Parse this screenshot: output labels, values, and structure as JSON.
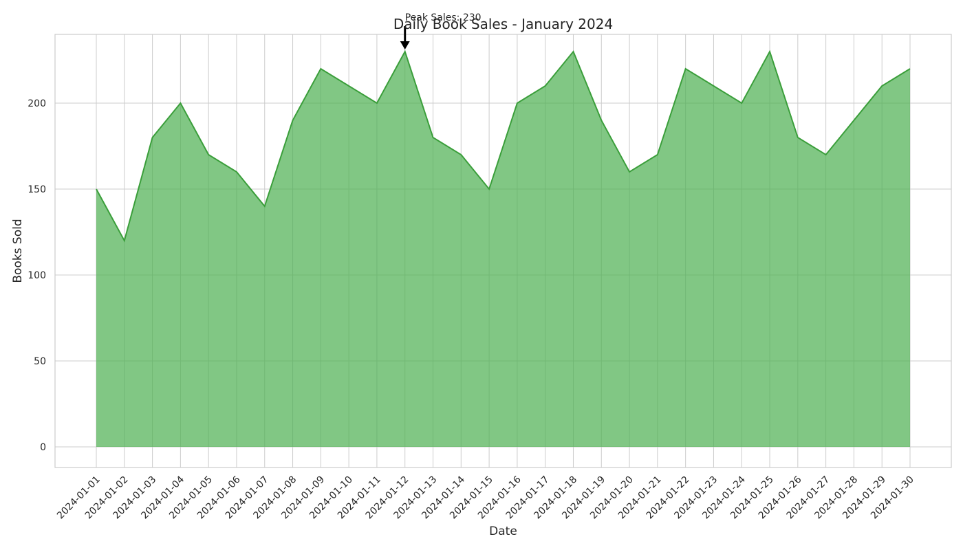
{
  "chart_data": {
    "type": "area",
    "title": "Daily Book Sales - January 2024",
    "xlabel": "Date",
    "ylabel": "Books Sold",
    "x": [
      "2024-01-01",
      "2024-01-02",
      "2024-01-03",
      "2024-01-04",
      "2024-01-05",
      "2024-01-06",
      "2024-01-07",
      "2024-01-08",
      "2024-01-09",
      "2024-01-10",
      "2024-01-11",
      "2024-01-12",
      "2024-01-13",
      "2024-01-14",
      "2024-01-15",
      "2024-01-16",
      "2024-01-17",
      "2024-01-18",
      "2024-01-19",
      "2024-01-20",
      "2024-01-21",
      "2024-01-22",
      "2024-01-23",
      "2024-01-24",
      "2024-01-25",
      "2024-01-26",
      "2024-01-27",
      "2024-01-28",
      "2024-01-29",
      "2024-01-30"
    ],
    "values": [
      150,
      120,
      180,
      200,
      170,
      160,
      140,
      190,
      220,
      210,
      200,
      230,
      180,
      170,
      150,
      200,
      210,
      230,
      190,
      160,
      170,
      220,
      210,
      200,
      230,
      180,
      170,
      190,
      210,
      220
    ],
    "ylim": [
      -12,
      240
    ],
    "yticks": [
      0,
      50,
      100,
      150,
      200
    ],
    "grid": true,
    "annotation": {
      "text": "Peak Sales: 230",
      "x": "2024-01-12",
      "y": 230
    },
    "colors": {
      "fill": "#4caf50",
      "line": "#3a9e3a",
      "grid": "#cccccc",
      "frame": "#cccccc",
      "text": "#262626"
    }
  }
}
